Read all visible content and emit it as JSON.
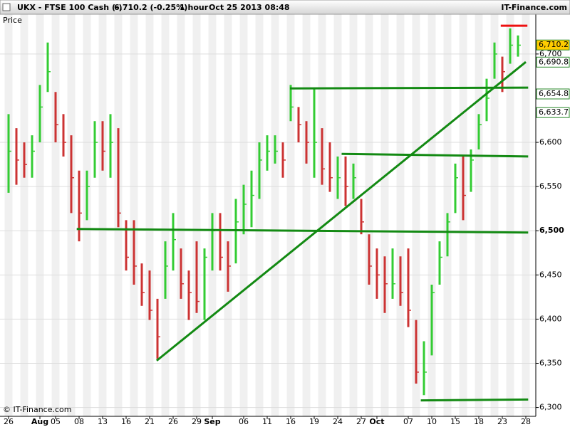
{
  "header": {
    "symbol": "UKX - FTSE 100 Cash (-)",
    "quote": "6,710.2 (-0.25%)",
    "interval": "1 hour",
    "timestamp": "Oct 25 2013 08:48",
    "brand": "IT-Finance.com"
  },
  "footer": "© IT-Finance.com",
  "chart_data": {
    "type": "hlc",
    "legend": "Price",
    "categories": [
      "26",
      null,
      null,
      null,
      "Aug",
      null,
      "05",
      null,
      null,
      "08",
      null,
      null,
      "13",
      null,
      null,
      "16",
      null,
      null,
      "21",
      null,
      null,
      "26",
      null,
      null,
      "29",
      null,
      "Sep",
      null,
      null,
      null,
      "06",
      null,
      null,
      "11",
      null,
      null,
      "16",
      null,
      null,
      "19",
      null,
      null,
      "24",
      null,
      null,
      "27",
      null,
      "Oct",
      null,
      null,
      null,
      "07",
      null,
      null,
      "10",
      null,
      null,
      "15",
      null,
      null,
      "18",
      null,
      null,
      "23",
      null,
      null,
      "28"
    ],
    "high": [
      6632,
      6616,
      6600,
      6608,
      6665,
      6713,
      6657,
      6632,
      6608,
      6568,
      6568,
      6624,
      6624,
      6632,
      6616,
      6512,
      6512,
      6463,
      6455,
      6423,
      6488,
      6520,
      6480,
      6455,
      6488,
      6480,
      6520,
      6520,
      6488,
      6536,
      6552,
      6568,
      6600,
      6608,
      6608,
      6600,
      6665,
      6640,
      6624,
      6661,
      6616,
      6600,
      6584,
      6584,
      6576,
      6536,
      6496,
      6480,
      6471,
      6480,
      6471,
      6480,
      6399,
      6375,
      6439,
      6488,
      6520,
      6576,
      6584,
      6592,
      6632,
      6672,
      6713,
      6697,
      6729,
      6721,
      null
    ],
    "low": [
      6543,
      6552,
      6560,
      6560,
      6600,
      6657,
      6600,
      6584,
      6520,
      6488,
      6512,
      6560,
      6568,
      6560,
      6504,
      6455,
      6439,
      6415,
      6399,
      6355,
      6423,
      6455,
      6423,
      6399,
      6407,
      6399,
      6455,
      6455,
      6431,
      6463,
      6496,
      6504,
      6536,
      6568,
      6576,
      6560,
      6624,
      6600,
      6576,
      6560,
      6552,
      6544,
      6536,
      6528,
      6536,
      6496,
      6439,
      6423,
      6407,
      6423,
      6415,
      6391,
      6327,
      6314,
      6359,
      6439,
      6471,
      6520,
      6512,
      6544,
      6592,
      6624,
      6672,
      6657,
      6689,
      6697,
      null
    ],
    "close": [
      6590,
      6580,
      6575,
      6590,
      6640,
      6680,
      6620,
      6600,
      6560,
      6520,
      6550,
      6600,
      6590,
      6600,
      6520,
      6470,
      6460,
      6430,
      6410,
      6380,
      6460,
      6490,
      6440,
      6430,
      6420,
      6470,
      6500,
      6470,
      6460,
      6510,
      6530,
      6540,
      6580,
      6590,
      6590,
      6580,
      6640,
      6620,
      6600,
      6600,
      6570,
      6560,
      6560,
      6550,
      6560,
      6510,
      6460,
      6450,
      6440,
      6440,
      6430,
      6410,
      6340,
      6340,
      6430,
      6470,
      6510,
      6560,
      6540,
      6580,
      6620,
      6650,
      6700,
      6680,
      6710,
      6710,
      null
    ],
    "up_color": "#33cc33",
    "down_color": "#cc3333",
    "ylim": [
      6290,
      6745
    ],
    "yticks": [
      {
        "value": 6300,
        "label": "6,300"
      },
      {
        "value": 6350,
        "label": "6,350"
      },
      {
        "value": 6400,
        "label": "6,400"
      },
      {
        "value": 6450,
        "label": "6,450"
      },
      {
        "value": 6500,
        "label": "6,500"
      },
      {
        "value": 6550,
        "label": "6,550"
      },
      {
        "value": 6600,
        "label": "6,600"
      },
      {
        "value": 6700,
        "label": "6,700"
      }
    ],
    "grid": true,
    "trendlines": [
      {
        "x": [
          8.7,
          66.3
        ],
        "y": [
          6502,
          6498
        ],
        "color": "#138a13"
      },
      {
        "x": [
          42.5,
          66.3
        ],
        "y": [
          6587,
          6584
        ],
        "color": "#138a13"
      },
      {
        "x": [
          35.9,
          66.3
        ],
        "y": [
          6661,
          6662
        ],
        "color": "#138a13"
      },
      {
        "x": [
          52.6,
          66.3
        ],
        "y": [
          6308,
          6309
        ],
        "color": "#138a13"
      },
      {
        "x": [
          18.9,
          66.0
        ],
        "y": [
          6353,
          6691
        ],
        "color": "#138a13"
      },
      {
        "x": [
          62.8,
          66.2
        ],
        "y": [
          6732,
          6732
        ],
        "color": "#ee1111"
      }
    ],
    "price_labels": [
      {
        "value": 6710.2,
        "label": "6,710.2",
        "fill": "#ffcc00"
      },
      {
        "value": 6690.8,
        "label": "6,690.8",
        "fill": "#ffffff"
      },
      {
        "value": 6654.8,
        "label": "6,654.8",
        "fill": "#ffffff"
      },
      {
        "value": 6633.7,
        "label": "6,633.7",
        "fill": "#ffffff"
      }
    ]
  }
}
